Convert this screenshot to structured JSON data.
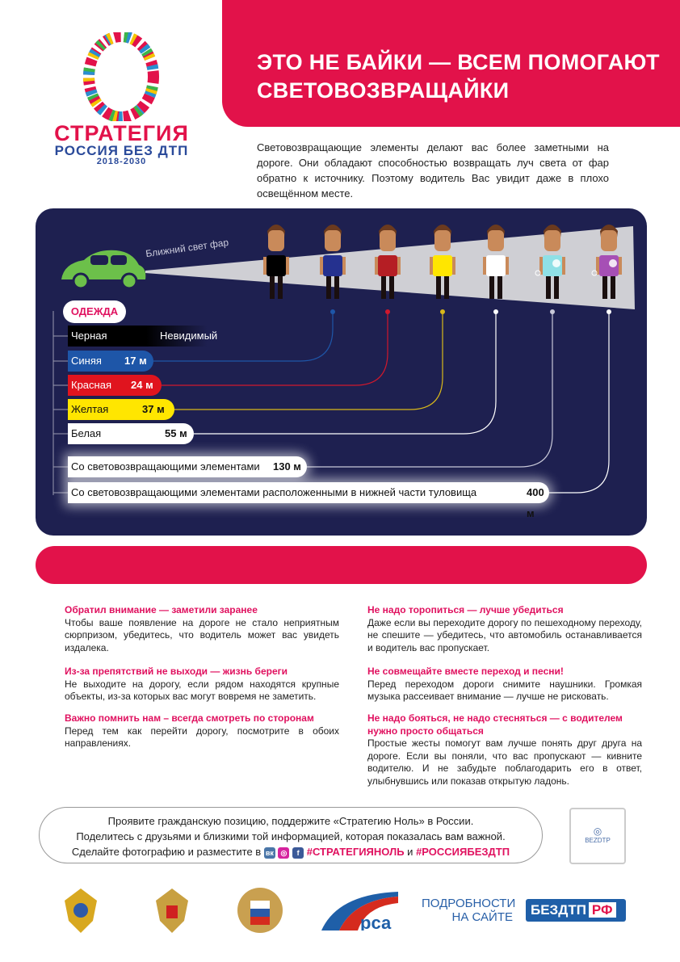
{
  "logo": {
    "line1": "СТРАТЕГИЯ",
    "line2": "РОССИЯ БЕЗ ДТП",
    "line3": "2018-2030"
  },
  "header": {
    "title": "ЭТО НЕ БАЙКИ — ВСЕМ ПОМОГАЮТ СВЕТОВОЗВРАЩАЙКИ"
  },
  "intro": "Световозвращающие элементы делают вас более заметными на дороге. Они обладают способностью возвращать луч света от фар обратно к источнику. Поэтому водитель Вас увидит даже в плохо освещённом месте.",
  "infographic": {
    "beam_label": "Ближний свет фар",
    "clothing_label": "ОДЕЖДА",
    "car_color": "#6cc04a",
    "people_shirts": [
      "#000000",
      "#25318f",
      "#b51e24",
      "#ffe600",
      "#ffffff",
      "#8fe0e6",
      "#a64fb5"
    ],
    "rows": [
      {
        "label": "Черная",
        "value": "Невидимый",
        "color": "#000000"
      },
      {
        "label": "Синяя",
        "value": "17 м",
        "color": "#1e56a8"
      },
      {
        "label": "Красная",
        "value": "24 м",
        "color": "#e0141e"
      },
      {
        "label": "Желтая",
        "value": "37 м",
        "color": "#ffe600"
      },
      {
        "label": "Белая",
        "value": "55 м",
        "color": "#ffffff"
      },
      {
        "label": "Со световозвращающими элементами",
        "value": "130 м",
        "color": "#ffffff"
      },
      {
        "label": "Со световозвращающими элементами расположенными в нижней части туловища",
        "value": "400 м",
        "color": "#ffffff"
      }
    ]
  },
  "tips": [
    {
      "title": "Обратил внимание — заметили заранее",
      "text": "Чтобы ваше появление на дороге не стало неприятным сюрпризом, убедитесь, что водитель может вас увидеть издалека."
    },
    {
      "title": "Из-за препятствий не выходи — жизнь береги",
      "text": "Не выходите на дорогу, если рядом находятся крупные объекты, из-за которых вас могут вовремя не заметить."
    },
    {
      "title": "Важно помнить нам – всегда смотреть по сторонам",
      "text": "Перед тем как перейти дорогу, посмотрите в обоих направлениях."
    },
    {
      "title": "Не надо торопиться — лучше убедиться",
      "text": "Даже если вы переходите дорогу по пешеходному переходу, не спешите — убедитесь, что автомобиль останавливается и водитель вас пропускает."
    },
    {
      "title": "Не совмещайте вместе переход и песни!",
      "text": "Перед переходом дороги снимите наушники. Громкая музыка рассеивает внимание — лучше не рисковать."
    },
    {
      "title": "Не надо бояться, не надо стесняться — с водителем нужно просто общаться",
      "text": "Простые жесты помогут вам лучше понять друг друга на дороге. Если вы поняли, что вас пропускают — кивните водителю. И не забудьте поблагодарить его в ответ, улыбнувшись или показав открытую ладонь."
    }
  ],
  "share": {
    "line1": "Проявите гражданскую позицию, поддержите «Стратегию Ноль»  в России.",
    "line2": "Поделитесь с друзьями и близкими той информацией, которая показалась вам важной.",
    "line3": "Сделайте фотографию и разместите в",
    "vk": "вк",
    "fb": "f",
    "hashtag1": "#СТРАТЕГИЯНОЛЬ",
    "and": "и",
    "hashtag2": "#РОССИЯБЕЗДТП"
  },
  "qr": {
    "label": "BEZDTP"
  },
  "footer": {
    "more": "ПОДРОБНОСТИ НА САЙТЕ",
    "site_main": "БЕЗДТП",
    "site_suffix": "РФ"
  }
}
